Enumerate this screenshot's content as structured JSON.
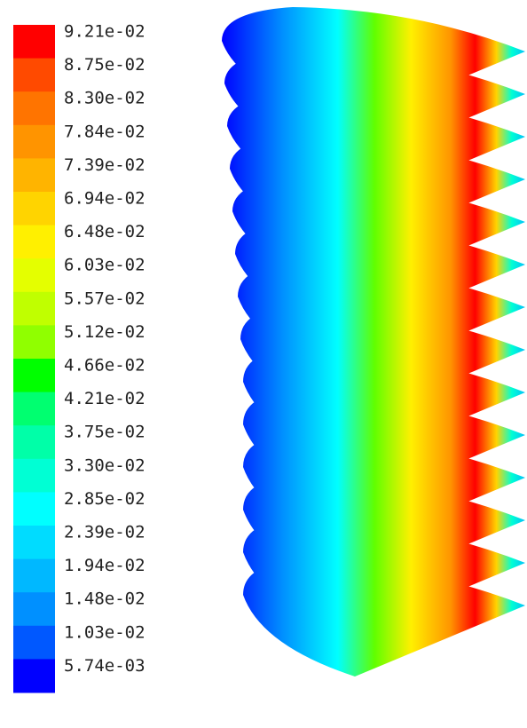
{
  "colorbar": {
    "labels": [
      "9.21e-02",
      "8.75e-02",
      "8.30e-02",
      "7.84e-02",
      "7.39e-02",
      "6.94e-02",
      "6.48e-02",
      "6.03e-02",
      "5.57e-02",
      "5.12e-02",
      "4.66e-02",
      "4.21e-02",
      "3.75e-02",
      "3.30e-02",
      "2.85e-02",
      "2.39e-02",
      "1.94e-02",
      "1.48e-02",
      "1.03e-02",
      "5.74e-03"
    ],
    "colors": [
      "#ff0000",
      "#ff4a00",
      "#ff7400",
      "#ff9400",
      "#ffb400",
      "#ffd400",
      "#fff000",
      "#e4ff00",
      "#c0ff00",
      "#90ff00",
      "#00ff00",
      "#00ff70",
      "#00ffa8",
      "#00ffd4",
      "#00ffff",
      "#00dcff",
      "#00b8ff",
      "#0090ff",
      "#0058ff",
      "#0000ff"
    ]
  }
}
